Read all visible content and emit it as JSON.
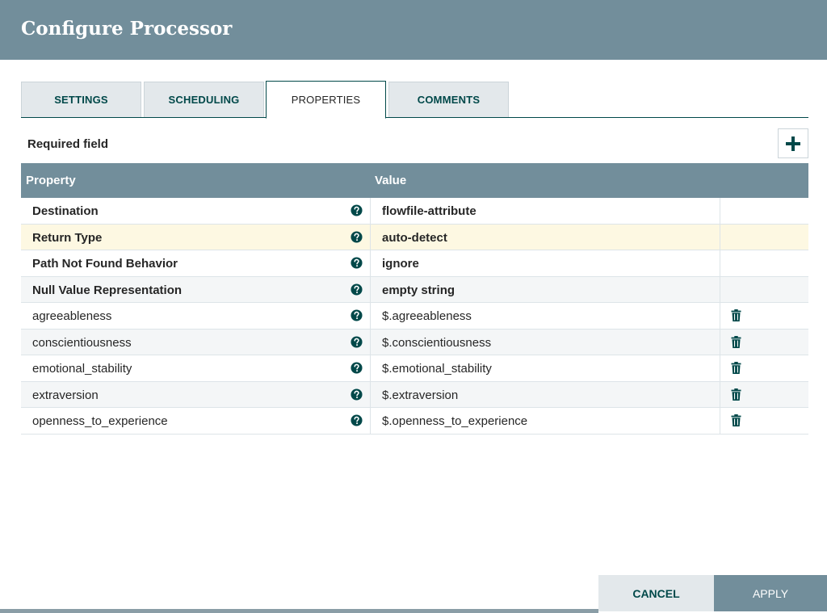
{
  "dialog": {
    "title": "Configure Processor"
  },
  "tabs": [
    {
      "label": "SETTINGS",
      "active": false
    },
    {
      "label": "SCHEDULING",
      "active": false
    },
    {
      "label": "PROPERTIES",
      "active": true
    },
    {
      "label": "COMMENTS",
      "active": false
    }
  ],
  "properties": {
    "required_label": "Required field",
    "add_icon": "plus-icon",
    "columns": {
      "property": "Property",
      "value": "Value"
    },
    "rows": [
      {
        "name": "Destination",
        "value": "flowfile-attribute",
        "required": true,
        "deletable": false
      },
      {
        "name": "Return Type",
        "value": "auto-detect",
        "required": true,
        "deletable": false
      },
      {
        "name": "Path Not Found Behavior",
        "value": "ignore",
        "required": true,
        "deletable": false
      },
      {
        "name": "Null Value Representation",
        "value": "empty string",
        "required": true,
        "deletable": false
      },
      {
        "name": "agreeableness",
        "value": "$.agreeableness",
        "required": false,
        "deletable": true
      },
      {
        "name": "conscientiousness",
        "value": "$.conscientiousness",
        "required": false,
        "deletable": true
      },
      {
        "name": "emotional_stability",
        "value": "$.emotional_stability",
        "required": false,
        "deletable": true
      },
      {
        "name": "extraversion",
        "value": "$.extraversion",
        "required": false,
        "deletable": true
      },
      {
        "name": "openness_to_experience",
        "value": "$.openness_to_experience",
        "required": false,
        "deletable": true
      }
    ],
    "highlighted_row": 1
  },
  "footer": {
    "cancel_label": "CANCEL",
    "apply_label": "APPLY"
  },
  "colors": {
    "header_bg": "#728e9b",
    "accent": "#004849",
    "highlight_row": "#fdf8e2"
  }
}
